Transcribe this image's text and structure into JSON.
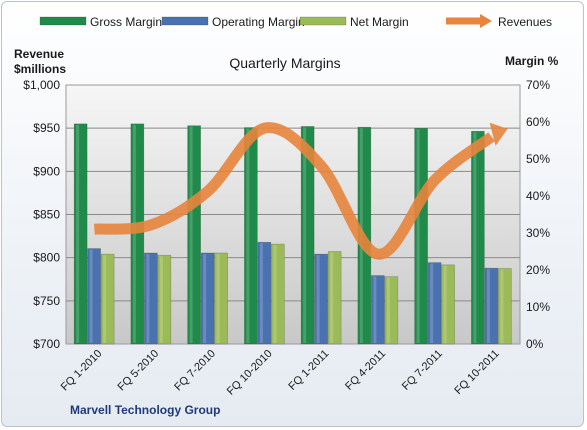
{
  "chart_data": {
    "type": "bar",
    "title": "Quarterly Margins",
    "footer": "Marvell Technology Group",
    "categories": [
      "FQ 1-2010",
      "FQ 5-2010",
      "FQ 7-2010",
      "FQ 10-2010",
      "FQ 1-2011",
      "FQ 4-2011",
      "FQ 7-2011",
      "FQ 10-2011"
    ],
    "series": [
      {
        "name": "Gross Margin",
        "kind": "bar",
        "axis": "right",
        "color": "#1f8a4a",
        "values": [
          59.5,
          59.5,
          59.0,
          58.5,
          58.8,
          58.6,
          58.3,
          57.5
        ]
      },
      {
        "name": "Operating Margin",
        "kind": "bar",
        "axis": "right",
        "color": "#4a72b0",
        "values": [
          25.8,
          24.6,
          24.6,
          27.5,
          24.3,
          18.5,
          22.0,
          20.5
        ]
      },
      {
        "name": "Net Margin",
        "kind": "bar",
        "axis": "right",
        "color": "#9bbb59",
        "values": [
          24.3,
          24.0,
          24.6,
          27.0,
          25.0,
          18.2,
          21.4,
          20.4
        ]
      },
      {
        "name": "Revenues",
        "kind": "line",
        "axis": "left",
        "color": "#e8843c",
        "values": [
          833,
          838,
          877,
          950,
          906,
          804,
          890,
          940
        ]
      }
    ],
    "y_left": {
      "label_line1": "Revenue",
      "label_line2": "$millions",
      "min": 700,
      "max": 1000,
      "ticks": [
        "$700",
        "$750",
        "$800",
        "$850",
        "$900",
        "$950",
        "$1,000"
      ]
    },
    "y_right": {
      "label": "Margin %",
      "min": 0,
      "max": 70,
      "ticks": [
        "0%",
        "10%",
        "20%",
        "30%",
        "40%",
        "50%",
        "60%",
        "70%"
      ]
    },
    "legend_position": "top",
    "grid": true
  }
}
